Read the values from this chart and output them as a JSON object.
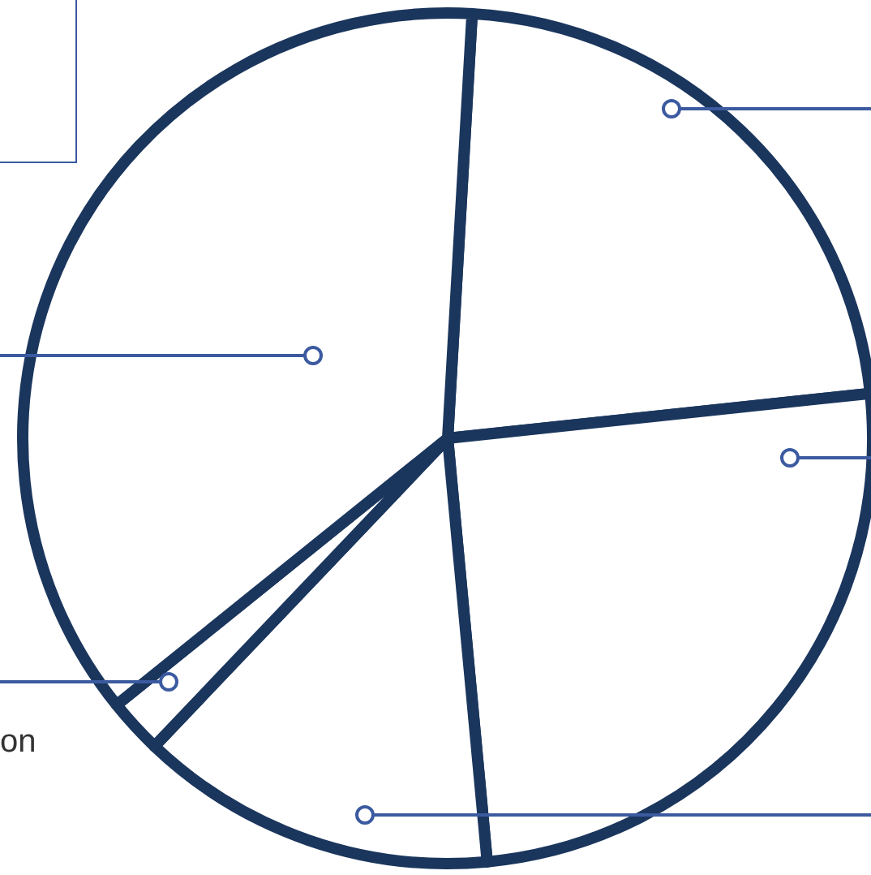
{
  "chart_data": {
    "type": "pie",
    "categories": [
      null,
      null,
      null,
      null,
      null
    ],
    "values": [
      22.4,
      25.2,
      13.6,
      2.1,
      36.7
    ],
    "colors": [
      "#ffffff",
      "#ffffff",
      "#ffffff",
      "#ffffff",
      "#ffffff"
    ],
    "annotations": [
      "on"
    ]
  }
}
